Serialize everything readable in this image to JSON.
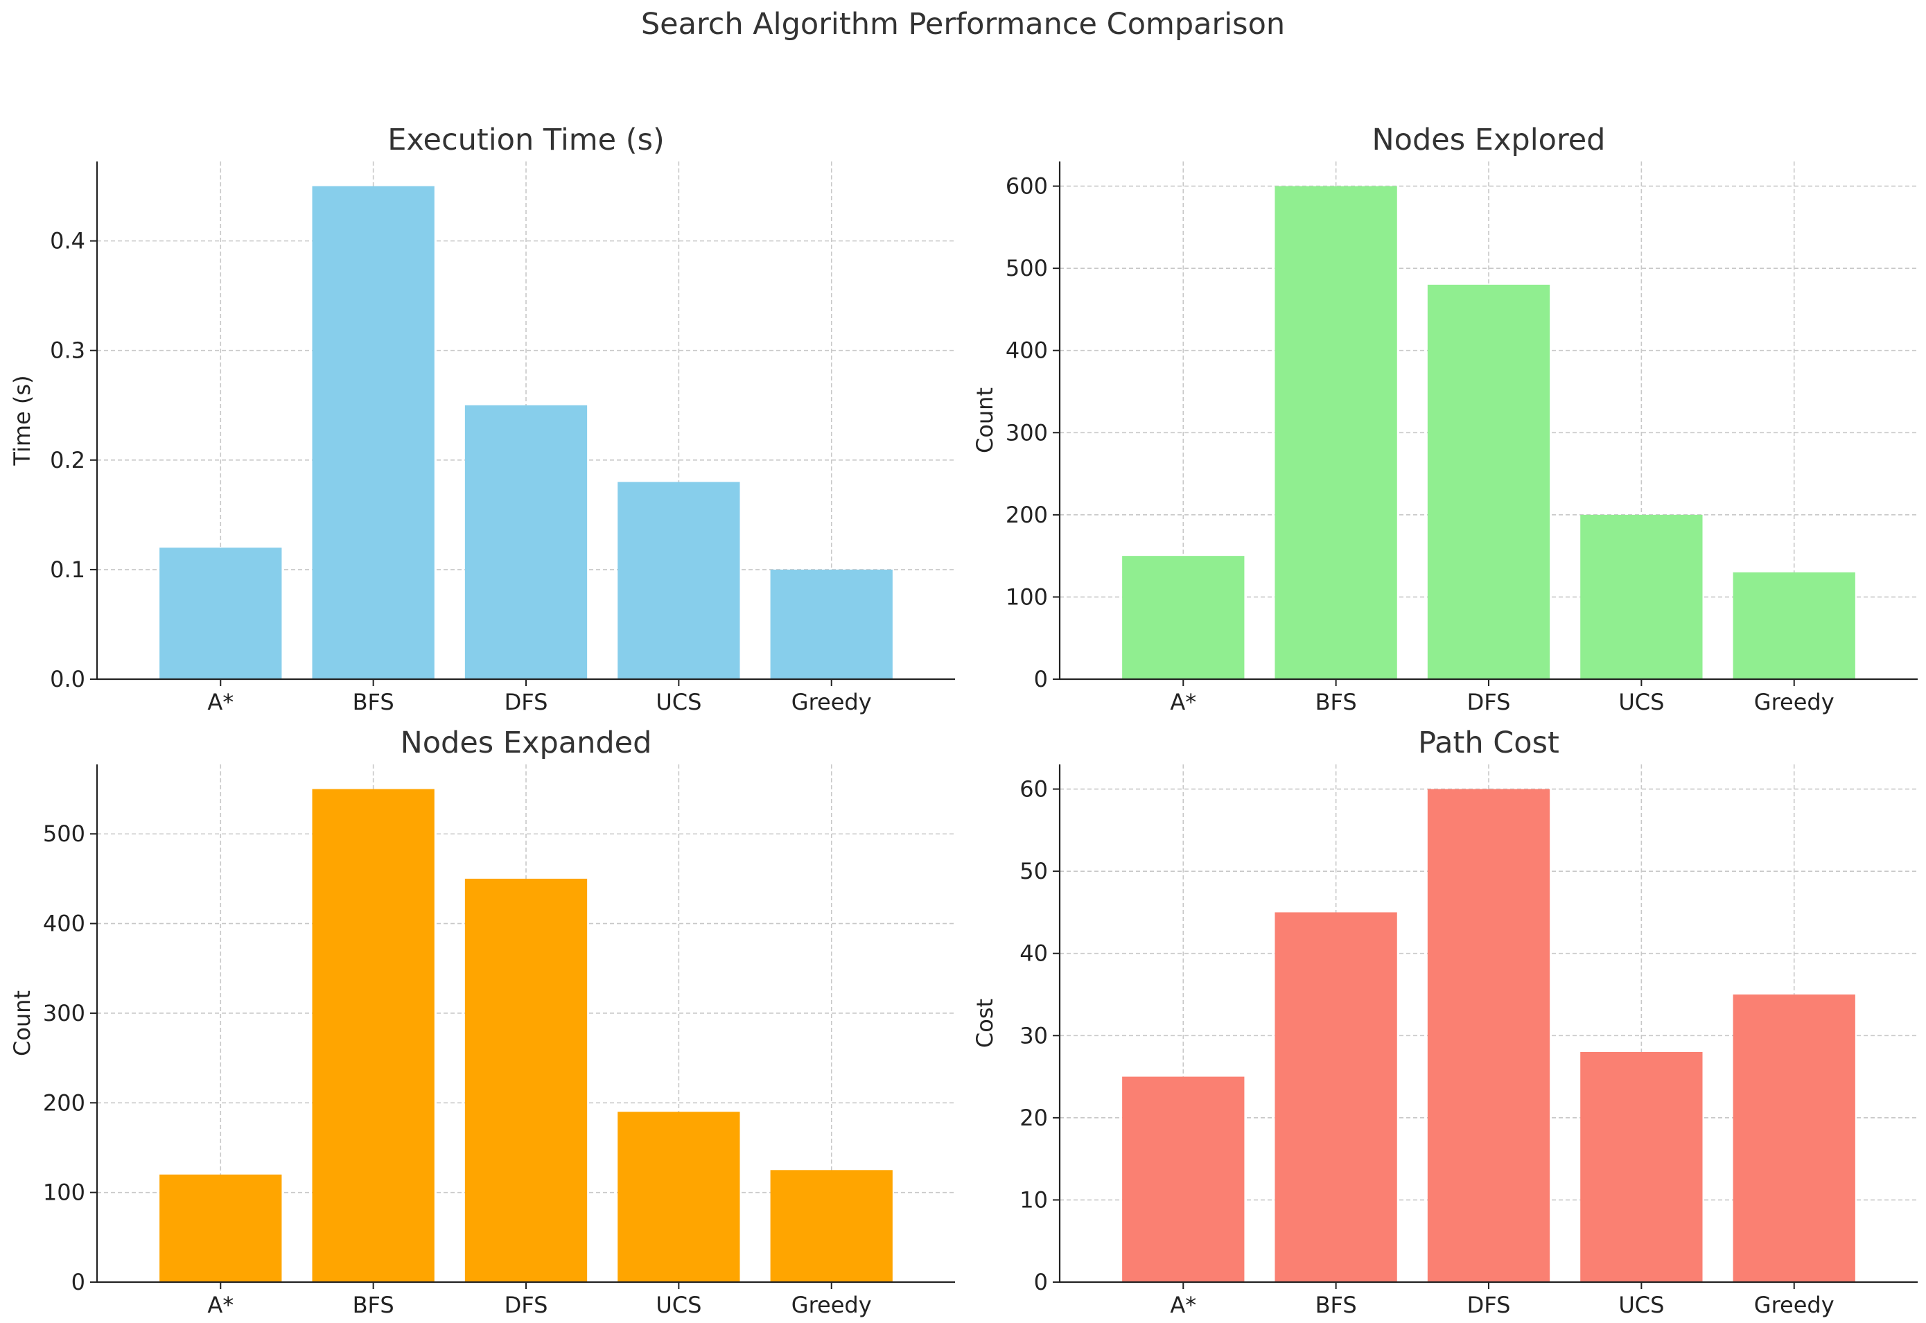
{
  "figure": {
    "title": "Search Algorithm Performance Comparison"
  },
  "chart_data": [
    {
      "type": "bar",
      "title": "Execution Time (s)",
      "xlabel": "",
      "ylabel": "Time (s)",
      "categories": [
        "A*",
        "BFS",
        "DFS",
        "UCS",
        "Greedy"
      ],
      "values": [
        0.12,
        0.45,
        0.25,
        0.18,
        0.1
      ],
      "ylim": [
        0,
        0.4725
      ],
      "yticks": [
        0.0,
        0.1,
        0.2,
        0.3,
        0.4
      ],
      "ytick_labels": [
        "0.0",
        "0.1",
        "0.2",
        "0.3",
        "0.4"
      ],
      "color": "#87CEEB",
      "grid": true
    },
    {
      "type": "bar",
      "title": "Nodes Explored",
      "xlabel": "",
      "ylabel": "Count",
      "categories": [
        "A*",
        "BFS",
        "DFS",
        "UCS",
        "Greedy"
      ],
      "values": [
        150,
        600,
        480,
        200,
        130
      ],
      "ylim": [
        0,
        630
      ],
      "yticks": [
        0,
        100,
        200,
        300,
        400,
        500,
        600
      ],
      "ytick_labels": [
        "0",
        "100",
        "200",
        "300",
        "400",
        "500",
        "600"
      ],
      "color": "#90EE90",
      "grid": true
    },
    {
      "type": "bar",
      "title": "Nodes Expanded",
      "xlabel": "",
      "ylabel": "Count",
      "categories": [
        "A*",
        "BFS",
        "DFS",
        "UCS",
        "Greedy"
      ],
      "values": [
        120,
        550,
        450,
        190,
        125
      ],
      "ylim": [
        0,
        577.5
      ],
      "yticks": [
        0,
        100,
        200,
        300,
        400,
        500
      ],
      "ytick_labels": [
        "0",
        "100",
        "200",
        "300",
        "400",
        "500"
      ],
      "color": "#FFA500",
      "grid": true
    },
    {
      "type": "bar",
      "title": "Path Cost",
      "xlabel": "",
      "ylabel": "Cost",
      "categories": [
        "A*",
        "BFS",
        "DFS",
        "UCS",
        "Greedy"
      ],
      "values": [
        25,
        45,
        60,
        28,
        35
      ],
      "ylim": [
        0,
        63
      ],
      "yticks": [
        0,
        10,
        20,
        30,
        40,
        50,
        60
      ],
      "ytick_labels": [
        "0",
        "10",
        "20",
        "30",
        "40",
        "50",
        "60"
      ],
      "color": "#FA8072",
      "grid": true
    }
  ]
}
